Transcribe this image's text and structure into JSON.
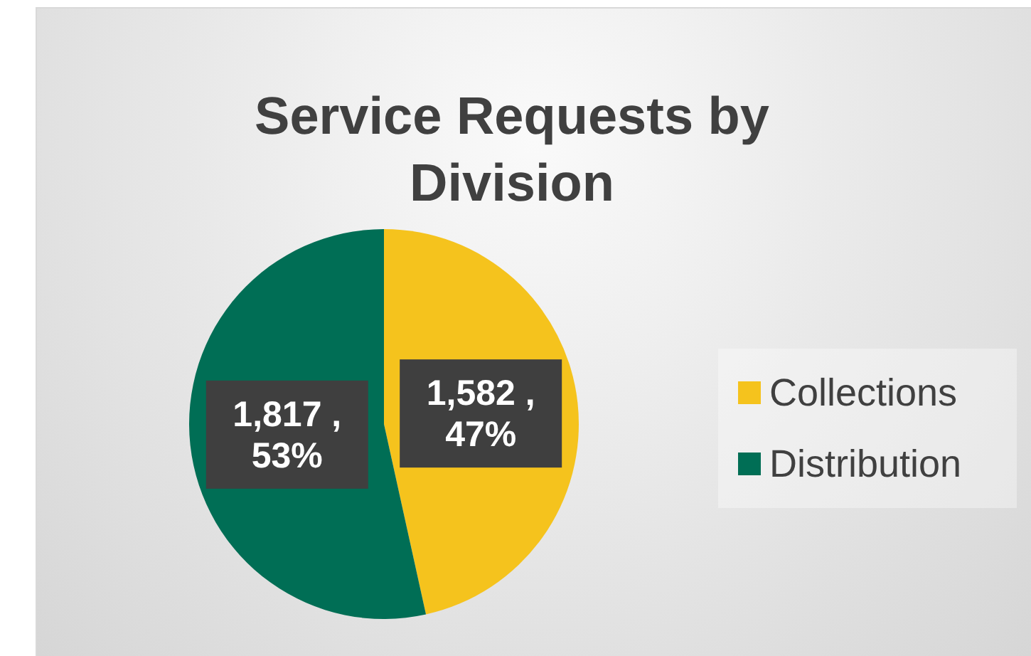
{
  "chart_data": {
    "type": "pie",
    "title": "Service Requests by Division",
    "categories": [
      "Collections",
      "Distribution"
    ],
    "values": [
      1582,
      1817
    ],
    "colors": [
      "#f5c31d",
      "#006e55"
    ],
    "value_labels": [
      "1,582 , 47%",
      "1,817 , 53%"
    ],
    "legend": "right"
  }
}
